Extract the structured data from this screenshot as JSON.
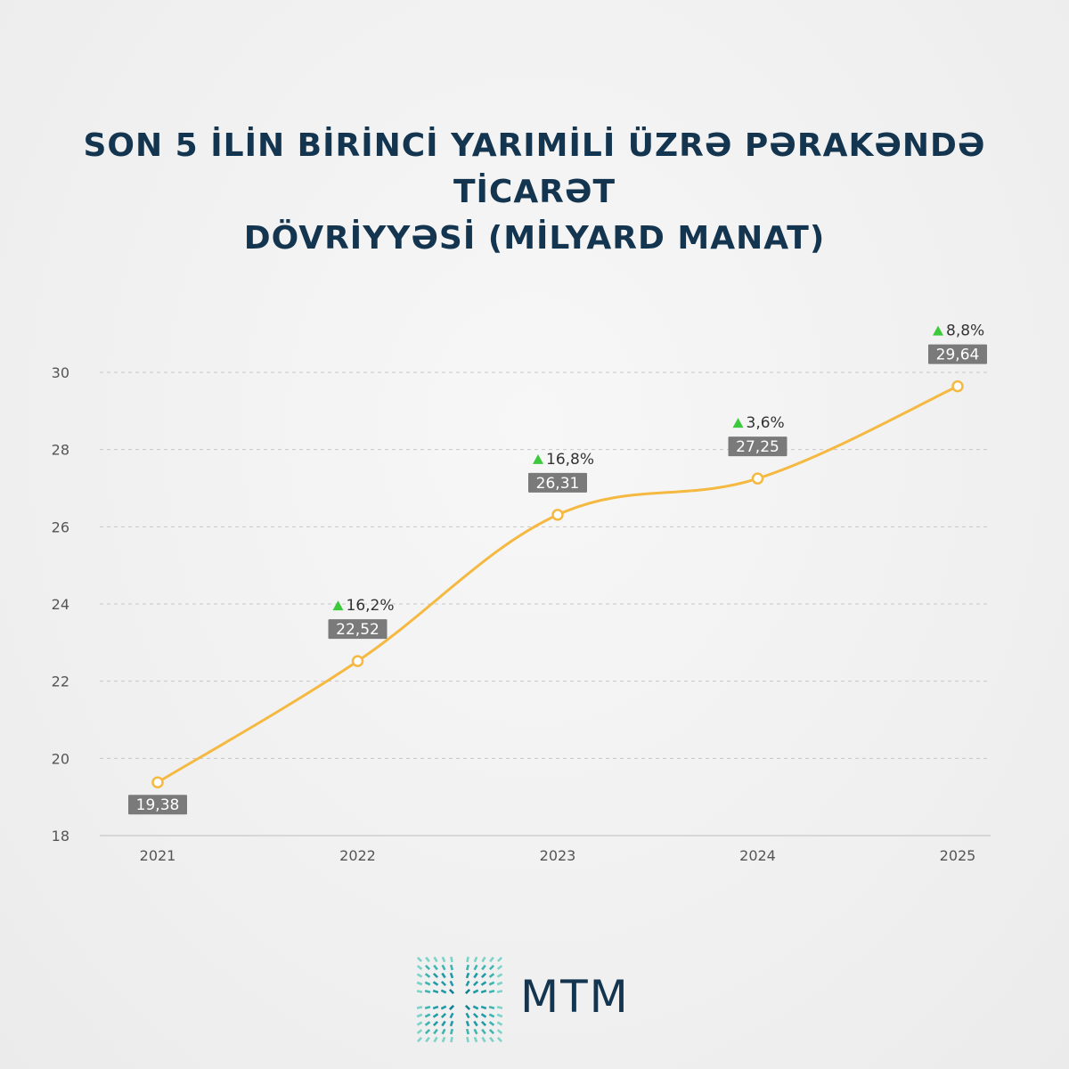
{
  "header": {
    "title_line1": "SON 5 İLİN BİRİNCİ YARIMİLİ ÜZRƏ PƏRAKƏNDƏ TİCARƏT",
    "title_line2": "DÖVRİYYƏSİ (MİLYARD MANAT)"
  },
  "chart_data": {
    "type": "line",
    "title": "SON 5 İLİN BİRİNCİ YARIMİLİ ÜZRƏ PƏRAKƏNDƏ TİCARƏT DÖVRİYYƏSİ (MİLYARD MANAT)",
    "categories": [
      "2021",
      "2022",
      "2023",
      "2024",
      "2025"
    ],
    "values": [
      19.38,
      22.52,
      26.31,
      27.25,
      29.64
    ],
    "value_labels": [
      "19,38",
      "22,52",
      "26,31",
      "27,25",
      "29,64"
    ],
    "growth_labels": [
      "",
      "16,2%",
      "16,8%",
      "3,6%",
      "8,8%"
    ],
    "ylim": [
      18,
      30
    ],
    "yticks": [
      18,
      20,
      22,
      24,
      26,
      28,
      30
    ],
    "grid": true,
    "line_color": "#f5b942",
    "label_bg_color": "#7a7a7a",
    "growth_arrow_color": "#3cc93c"
  },
  "footer": {
    "logo_text": "MTM",
    "logo_icon": "mtm-logo-icon"
  }
}
